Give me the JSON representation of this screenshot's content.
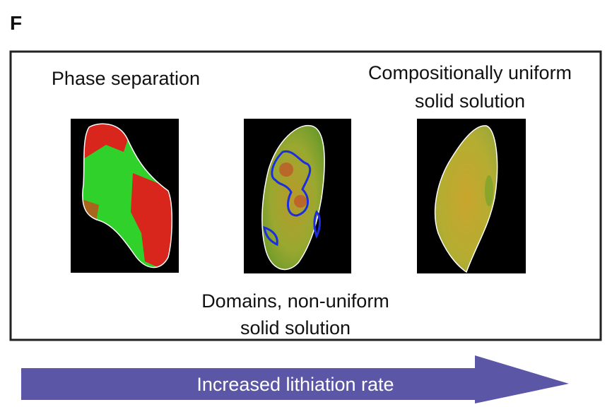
{
  "panel_label": "F",
  "labels": {
    "phase_separation": [
      "Phase separation"
    ],
    "uniform": [
      "Compositionally uniform",
      "solid solution"
    ],
    "domains": [
      "Domains, non-uniform",
      "solid solution"
    ]
  },
  "arrow_label": "Increased lithiation rate"
}
